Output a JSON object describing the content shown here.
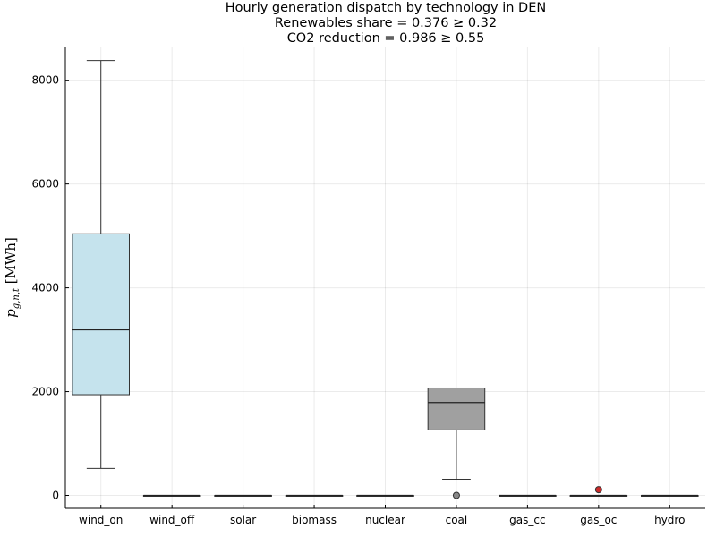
{
  "chart_data": {
    "type": "box",
    "title_lines": [
      "Hourly generation dispatch by technology in DEN",
      "Renewables share = 0.376 ≥ 0.32",
      "CO2 reduction = 0.986 ≥ 0.55"
    ],
    "ylabel": "p_{g,n,t} [MWh]",
    "xlabel": "",
    "ylim": [
      -250,
      8650
    ],
    "yticks": [
      0,
      2000,
      4000,
      6000,
      8000
    ],
    "grid": true,
    "legend": "none",
    "categories": [
      "wind_on",
      "wind_off",
      "solar",
      "biomass",
      "nuclear",
      "coal",
      "gas_cc",
      "gas_oc",
      "hydro"
    ],
    "boxes": [
      {
        "name": "wind_on",
        "min": 520,
        "q1": 1940,
        "median": 3190,
        "q3": 5040,
        "max": 8380,
        "outliers": [],
        "color": "#c5e3ed"
      },
      {
        "name": "wind_off",
        "min": 0,
        "q1": 0,
        "median": 0,
        "q3": 0,
        "max": 0,
        "outliers": [],
        "color": "#c5e3ed"
      },
      {
        "name": "solar",
        "min": 0,
        "q1": 0,
        "median": 0,
        "q3": 0,
        "max": 0,
        "outliers": [],
        "color": "#fce589"
      },
      {
        "name": "biomass",
        "min": 0,
        "q1": 0,
        "median": 0,
        "q3": 0,
        "max": 0,
        "outliers": [],
        "color": "#a9d18e"
      },
      {
        "name": "nuclear",
        "min": 0,
        "q1": 0,
        "median": 0,
        "q3": 0,
        "max": 0,
        "outliers": [],
        "color": "#e7a6a6"
      },
      {
        "name": "coal",
        "min": 310,
        "q1": 1260,
        "median": 1790,
        "q3": 2070,
        "max": 2070,
        "outliers": [
          0
        ],
        "color": "#a0a0a0"
      },
      {
        "name": "gas_cc",
        "min": 0,
        "q1": 0,
        "median": 0,
        "q3": 0,
        "max": 0,
        "outliers": [],
        "color": "#d9a0a0"
      },
      {
        "name": "gas_oc",
        "min": 0,
        "q1": 0,
        "median": 0,
        "q3": 0,
        "max": 0,
        "outliers": [
          110
        ],
        "color": "#cc2a2a"
      },
      {
        "name": "hydro",
        "min": 0,
        "q1": 0,
        "median": 0,
        "q3": 0,
        "max": 0,
        "outliers": [],
        "color": "#7fa8d8"
      }
    ]
  }
}
